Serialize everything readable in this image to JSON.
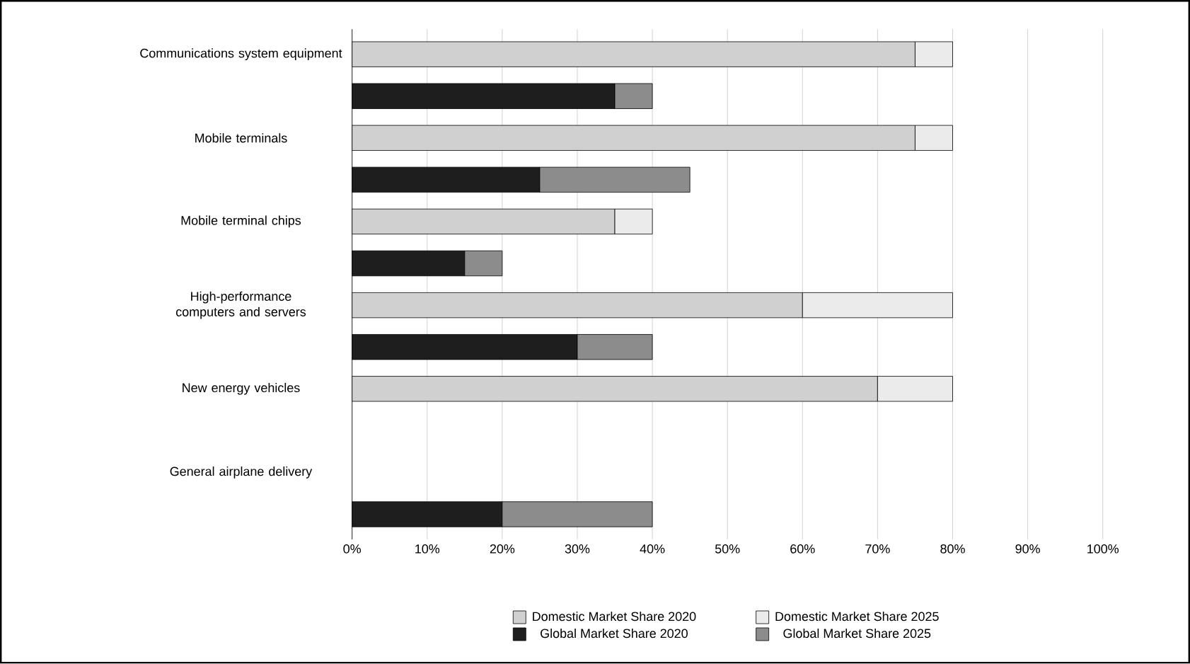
{
  "chart_data": {
    "type": "bar",
    "orientation": "horizontal",
    "stacked": true,
    "categories": [
      "Communications system equipment",
      null,
      "Mobile terminals",
      null,
      "Mobile terminal chips",
      null,
      "High-performance computers and servers",
      null,
      "New energy vehicles",
      null,
      "General airplane delivery",
      null
    ],
    "series": [
      {
        "name": "Domestic Market Share 2020",
        "color": "#d0d0d0",
        "values": [
          75,
          null,
          75,
          null,
          35,
          null,
          60,
          null,
          70,
          null,
          null,
          null
        ]
      },
      {
        "name": "Domestic Market Share 2025",
        "color": "#ebebeb",
        "values": [
          5,
          null,
          5,
          null,
          5,
          null,
          20,
          null,
          10,
          null,
          null,
          null
        ]
      },
      {
        "name": "Global Market Share 2020",
        "color": "#1e1e1e",
        "values": [
          null,
          35,
          null,
          25,
          null,
          15,
          null,
          30,
          null,
          null,
          null,
          20
        ]
      },
      {
        "name": "Global Market Share 2025",
        "color": "#8c8c8c",
        "values": [
          null,
          5,
          null,
          20,
          null,
          5,
          null,
          10,
          null,
          null,
          null,
          20
        ]
      }
    ],
    "xlim": [
      0,
      100
    ],
    "xticks": [
      {
        "value": 0,
        "label": "0%"
      },
      {
        "value": 10,
        "label": "10%"
      },
      {
        "value": 20,
        "label": "20%"
      },
      {
        "value": 30,
        "label": "30%"
      },
      {
        "value": 40,
        "label": "40%"
      },
      {
        "value": 50,
        "label": "50%"
      },
      {
        "value": 60,
        "label": "60%"
      },
      {
        "value": 70,
        "label": "70%"
      },
      {
        "value": 80,
        "label": "80%"
      },
      {
        "value": 90,
        "label": "90%"
      },
      {
        "value": 100,
        "label": "100%"
      }
    ],
    "grid": "x",
    "legend": "bottom"
  }
}
